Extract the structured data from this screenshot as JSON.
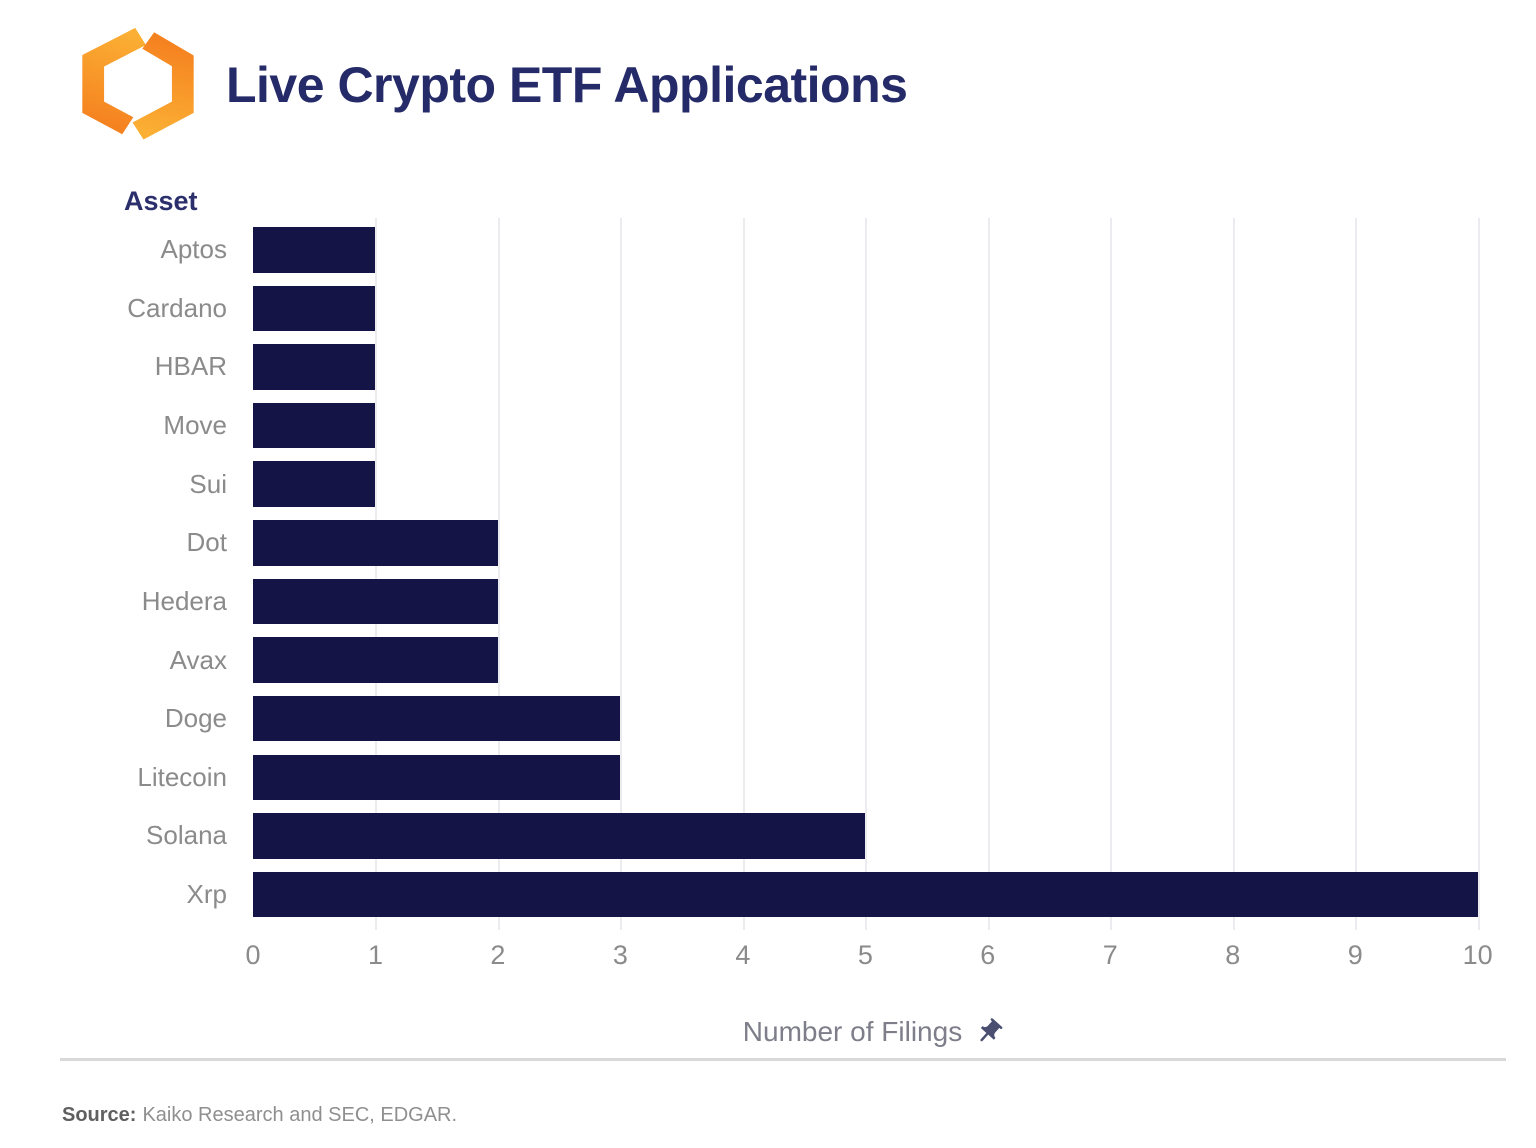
{
  "header": {
    "title": "Live Crypto ETF Applications"
  },
  "chart_data": {
    "type": "bar",
    "orientation": "horizontal",
    "title": "Live Crypto ETF Applications",
    "y_axis_title": "Asset",
    "xlabel": "Number of Filings",
    "categories": [
      "Aptos",
      "Cardano",
      "HBAR",
      "Move",
      "Sui",
      "Dot",
      "Hedera",
      "Avax",
      "Doge",
      "Litecoin",
      "Solana",
      "Xrp"
    ],
    "values": [
      1,
      1,
      1,
      1,
      1,
      2,
      2,
      2,
      3,
      3,
      5,
      10
    ],
    "xticks": [
      "0",
      "1",
      "2",
      "3",
      "4",
      "5",
      "6",
      "7",
      "8",
      "9",
      "10"
    ],
    "xlim": [
      0,
      10.15
    ],
    "grid": true,
    "gridlines": "vertical-light",
    "legend": "none",
    "bar_color": "#141446"
  },
  "colors": {
    "bar": "#141446",
    "title": "#252a68",
    "axis_label": "#2b2f6b",
    "category_label": "#8b8b8b",
    "tick_label": "#8b8b8b",
    "xlabel": "#7e7e8a",
    "pushpin": "#4a4f72",
    "divider": "#d9d9d9",
    "gridline": "#ebebf0",
    "logo_amber": "#FBB034",
    "logo_orange": "#F58220",
    "source_label": "#5f5f5f",
    "source_text": "#8f8f8f"
  },
  "icons": {
    "logo": "kaiko-logo",
    "xlabel_icon": "pushpin"
  },
  "footer": {
    "source_label": "Source:",
    "source_text": "Kaiko Research and SEC, EDGAR."
  }
}
